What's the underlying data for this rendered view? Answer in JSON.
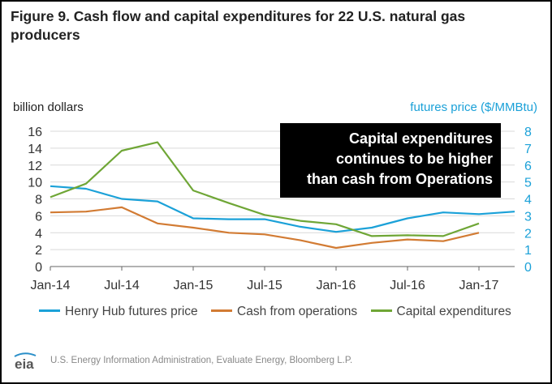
{
  "title": "Figure 9. Cash flow and capital expenditures for 22 U.S. natural gas producers",
  "source": "U.S. Energy Information Administration, Evaluate Energy, Bloomberg L.P.",
  "logo_text": "eia",
  "callout": {
    "lines": [
      "Capital expenditures",
      "continues to be higher",
      "than cash from Operations"
    ]
  },
  "chart_data": {
    "type": "line",
    "x": [
      "2014-01",
      "2014-04",
      "2014-07",
      "2014-10",
      "2015-01",
      "2015-04",
      "2015-07",
      "2015-10",
      "2016-01",
      "2016-04",
      "2016-07",
      "2016-10",
      "2017-01",
      "2017-04"
    ],
    "x_tick_labels": [
      "Jan-14",
      "Jul-14",
      "Jan-15",
      "Jul-15",
      "Jan-16",
      "Jul-16",
      "Jan-17"
    ],
    "y_left": {
      "label": "billion dollars",
      "ticks": [
        0,
        2,
        4,
        6,
        8,
        10,
        12,
        14,
        16
      ],
      "range": [
        0,
        16
      ]
    },
    "y_right": {
      "label": "futures price ($/MMBtu)",
      "ticks": [
        0,
        1,
        2,
        3,
        4,
        5,
        6,
        7,
        8
      ],
      "range": [
        0,
        8
      ]
    },
    "grid": "horizontal",
    "legend": "bottom",
    "series": [
      {
        "name": "Henry Hub futures price",
        "axis": "right",
        "color": "#1ba1d8",
        "x": [
          "2014-01",
          "2014-04",
          "2014-07",
          "2014-10",
          "2015-01",
          "2015-04",
          "2015-07",
          "2015-10",
          "2016-01",
          "2016-04",
          "2016-07",
          "2016-10",
          "2017-01",
          "2017-04"
        ],
        "values": [
          4.75,
          4.6,
          4.0,
          3.85,
          2.85,
          2.8,
          2.8,
          2.35,
          2.05,
          2.3,
          2.85,
          3.2,
          3.1,
          3.25
        ]
      },
      {
        "name": "Cash from operations",
        "axis": "left",
        "color": "#d27b33",
        "x": [
          "2014-01",
          "2014-04",
          "2014-07",
          "2014-10",
          "2015-01",
          "2015-04",
          "2015-07",
          "2015-10",
          "2016-01",
          "2016-04",
          "2016-07",
          "2016-10",
          "2017-01"
        ],
        "values": [
          6.4,
          6.5,
          7.0,
          5.1,
          4.6,
          4.0,
          3.8,
          3.1,
          2.2,
          2.8,
          3.2,
          3.0,
          4.0
        ]
      },
      {
        "name": "Capital expenditures",
        "axis": "left",
        "color": "#6fa636",
        "x": [
          "2014-01",
          "2014-04",
          "2014-07",
          "2014-10",
          "2015-01",
          "2015-04",
          "2015-07",
          "2015-10",
          "2016-01",
          "2016-04",
          "2016-07",
          "2016-10",
          "2017-01"
        ],
        "values": [
          8.2,
          9.8,
          13.7,
          14.7,
          9.0,
          7.5,
          6.1,
          5.4,
          5.0,
          3.6,
          3.7,
          3.6,
          5.1
        ]
      }
    ]
  }
}
